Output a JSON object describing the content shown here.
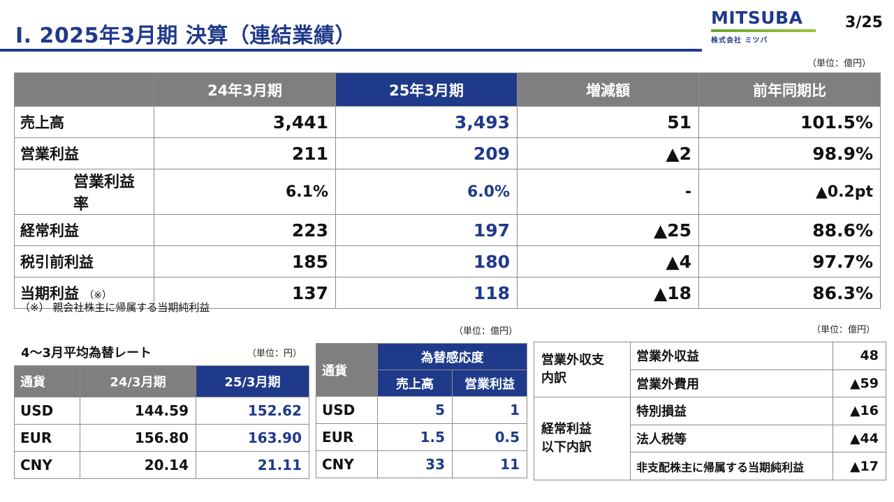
{
  "header": {
    "title": "Ⅰ. 2025年3月期 決算（連結業績）",
    "logo_text": "MITSUBA",
    "logo_sub": "株式会社 ミツバ",
    "page": "3/25"
  },
  "colors": {
    "accent": "#1f3a8a",
    "header_gray": "#7f7f7f",
    "logo_green": "#7ab336"
  },
  "main_table": {
    "unit": "（単位：億円）",
    "headers": [
      "24年3月期",
      "25年3月期",
      "増減額",
      "前年同期比"
    ],
    "rows": [
      {
        "label": "売上高",
        "note": "",
        "values": [
          "3,441",
          "3,493",
          "51",
          "101.5%"
        ]
      },
      {
        "label": "営業利益",
        "note": "",
        "values": [
          "211",
          "209",
          "▲2",
          "98.9%"
        ]
      },
      {
        "label": "営業利益率",
        "note": "",
        "values": [
          "6.1%",
          "6.0%",
          "-",
          "▲0.2pt"
        ]
      },
      {
        "label": "経常利益",
        "note": "",
        "values": [
          "223",
          "197",
          "▲25",
          "88.6%"
        ]
      },
      {
        "label": "税引前利益",
        "note": "",
        "values": [
          "185",
          "180",
          "▲4",
          "97.7%"
        ]
      },
      {
        "label": "当期利益",
        "note": "（※）",
        "values": [
          "137",
          "118",
          "▲18",
          "86.3%"
        ]
      }
    ],
    "footnote": "（※） 親会社株主に帰属する当期純利益"
  },
  "fx_rates": {
    "title": "4～3月平均為替レート",
    "unit": "（単位：円）",
    "headers": [
      "通貨",
      "24/3月期",
      "25/3月期"
    ],
    "rows": [
      {
        "currency": "USD",
        "prev": "144.59",
        "curr": "152.62"
      },
      {
        "currency": "EUR",
        "prev": "156.80",
        "curr": "163.90"
      },
      {
        "currency": "CNY",
        "prev": "20.14",
        "curr": "21.11"
      }
    ]
  },
  "sensitivity": {
    "unit": "（単位：億円）",
    "currency_header": "通貨",
    "group_header": "為替感応度",
    "sub_headers": [
      "売上高",
      "営業利益"
    ],
    "rows": [
      {
        "currency": "USD",
        "sales": "5",
        "op": "1"
      },
      {
        "currency": "EUR",
        "sales": "1.5",
        "op": "0.5"
      },
      {
        "currency": "CNY",
        "sales": "33",
        "op": "11"
      }
    ]
  },
  "non_operating": {
    "unit": "（単位：億円）",
    "group1": {
      "label_line1": "営業外収支",
      "label_line2": "内訳",
      "items": [
        {
          "label": "営業外収益",
          "value": "48"
        },
        {
          "label": "営業外費用",
          "value": "▲59"
        }
      ]
    },
    "group2": {
      "label_line1": "経常利益",
      "label_line2": "以下内訳",
      "items": [
        {
          "label": "特別損益",
          "value": "▲16"
        },
        {
          "label": "法人税等",
          "value": "▲44"
        },
        {
          "label": "非支配株主に帰属する当期純利益",
          "value": "▲17"
        }
      ]
    }
  }
}
